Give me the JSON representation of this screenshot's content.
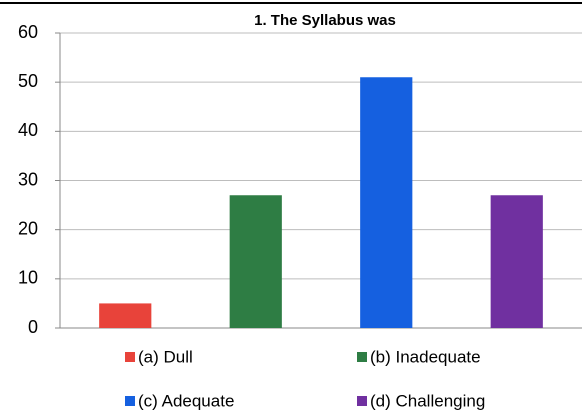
{
  "chart_data": {
    "type": "bar",
    "title": "1. The Syllabus was",
    "categories": [
      "(a) Dull",
      "(b) Inadequate",
      "(c) Adequate",
      "(d) Challenging"
    ],
    "values": [
      5,
      27,
      51,
      27
    ],
    "colors": [
      "#e8433a",
      "#2e7d44",
      "#1560e0",
      "#7030a0"
    ],
    "ylim": [
      0,
      60
    ],
    "yticks": [
      0,
      10,
      20,
      30,
      40,
      50,
      60
    ],
    "grid": true,
    "legend": "bottom"
  }
}
